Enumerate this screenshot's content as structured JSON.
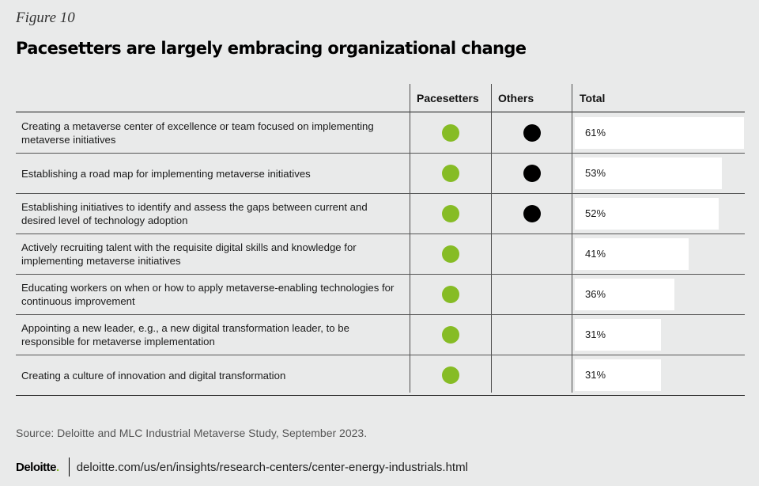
{
  "figure_label": "Figure 10",
  "title": "Pacesetters are largely embracing organizational change",
  "chart_data": {
    "type": "table",
    "columns": [
      "Pacesetters",
      "Others",
      "Total"
    ],
    "rows": [
      {
        "label": "Creating a metaverse center of excellence or team focused on implementing metaverse initiatives",
        "pacesetters": true,
        "others": true,
        "total": 61,
        "total_label": "61%"
      },
      {
        "label": "Establishing a road map for implementing metaverse initiatives",
        "pacesetters": true,
        "others": true,
        "total": 53,
        "total_label": "53%"
      },
      {
        "label": "Establishing initiatives to identify and assess the gaps between current and desired level of technology adoption",
        "pacesetters": true,
        "others": true,
        "total": 52,
        "total_label": "52%"
      },
      {
        "label": "Actively recruiting talent with the requisite digital skills and knowledge for implementing metaverse initiatives",
        "pacesetters": true,
        "others": false,
        "total": 41,
        "total_label": "41%"
      },
      {
        "label": "Educating workers on when or how to apply metaverse-enabling technologies for continuous improvement",
        "pacesetters": true,
        "others": false,
        "total": 36,
        "total_label": "36%"
      },
      {
        "label": "Appointing a new leader, e.g., a new digital transformation leader, to be responsible for metaverse implementation",
        "pacesetters": true,
        "others": false,
        "total": 31,
        "total_label": "31%"
      },
      {
        "label": "Creating a culture of innovation and digital transformation",
        "pacesetters": true,
        "others": false,
        "total": 31,
        "total_label": "31%"
      }
    ],
    "colors": {
      "pacesetters": "#86bc25",
      "others": "#000000",
      "bar": "#ffffff"
    }
  },
  "source": "Source: Deloitte and MLC Industrial Metaverse Study, September 2023.",
  "footer": {
    "logo_text": "Deloitte",
    "logo_dot": ".",
    "url": "deloitte.com/us/en/insights/research-centers/center-energy-industrials.html"
  }
}
